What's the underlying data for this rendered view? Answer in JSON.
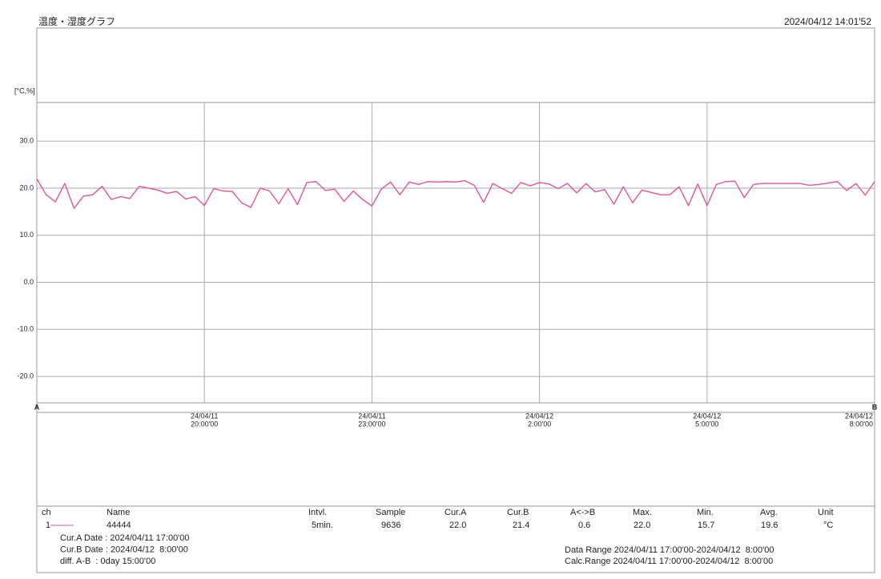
{
  "chart_data": {
    "type": "line",
    "title": "温度・湿度グラフ",
    "timestamp": "2024/04/12 14:01'52",
    "y_label": "[°C,%]",
    "cursor_a_label": "A",
    "cursor_b_label": "B",
    "grid": true,
    "ylim": [
      -25.6,
      38.2
    ],
    "yticks": [
      {
        "value": 30,
        "label": "30.0"
      },
      {
        "value": 20,
        "label": "20.0"
      },
      {
        "value": 10,
        "label": "10.0"
      },
      {
        "value": 0,
        "label": "0.0"
      },
      {
        "value": -10,
        "label": "-10.0"
      },
      {
        "value": -20,
        "label": "-20.0"
      }
    ],
    "xlim": [
      "2024-04-11T17:00",
      "2024-04-12T08:00"
    ],
    "xticks": [
      {
        "value": "2024-04-11T20:00",
        "label": [
          "24/04/11",
          "20:00'00"
        ]
      },
      {
        "value": "2024-04-11T23:00",
        "label": [
          "24/04/11",
          "23:00'00"
        ]
      },
      {
        "value": "2024-04-12T02:00",
        "label": [
          "24/04/12",
          "2:00'00"
        ]
      },
      {
        "value": "2024-04-12T05:00",
        "label": [
          "24/04/12",
          "5:00'00"
        ]
      },
      {
        "value": "2024-04-12T08:00",
        "label": [
          "24/04/12",
          "8:00'00"
        ]
      }
    ],
    "x": [
      "2024-04-11T17:00",
      "2024-04-11T17:10",
      "2024-04-11T17:20",
      "2024-04-11T17:30",
      "2024-04-11T17:40",
      "2024-04-11T17:50",
      "2024-04-11T18:00",
      "2024-04-11T18:10",
      "2024-04-11T18:20",
      "2024-04-11T18:30",
      "2024-04-11T18:40",
      "2024-04-11T18:50",
      "2024-04-11T19:00",
      "2024-04-11T19:10",
      "2024-04-11T19:20",
      "2024-04-11T19:30",
      "2024-04-11T19:40",
      "2024-04-11T19:50",
      "2024-04-11T20:00",
      "2024-04-11T20:10",
      "2024-04-11T20:20",
      "2024-04-11T20:30",
      "2024-04-11T20:40",
      "2024-04-11T20:50",
      "2024-04-11T21:00",
      "2024-04-11T21:10",
      "2024-04-11T21:20",
      "2024-04-11T21:30",
      "2024-04-11T21:40",
      "2024-04-11T21:50",
      "2024-04-11T22:00",
      "2024-04-11T22:10",
      "2024-04-11T22:20",
      "2024-04-11T22:30",
      "2024-04-11T22:40",
      "2024-04-11T22:50",
      "2024-04-11T23:00",
      "2024-04-11T23:10",
      "2024-04-11T23:20",
      "2024-04-11T23:30",
      "2024-04-11T23:40",
      "2024-04-11T23:50",
      "2024-04-12T00:00",
      "2024-04-12T00:10",
      "2024-04-12T00:20",
      "2024-04-12T00:30",
      "2024-04-12T00:40",
      "2024-04-12T00:50",
      "2024-04-12T01:00",
      "2024-04-12T01:10",
      "2024-04-12T01:20",
      "2024-04-12T01:30",
      "2024-04-12T01:40",
      "2024-04-12T01:50",
      "2024-04-12T02:00",
      "2024-04-12T02:10",
      "2024-04-12T02:20",
      "2024-04-12T02:30",
      "2024-04-12T02:40",
      "2024-04-12T02:50",
      "2024-04-12T03:00",
      "2024-04-12T03:10",
      "2024-04-12T03:20",
      "2024-04-12T03:30",
      "2024-04-12T03:40",
      "2024-04-12T03:50",
      "2024-04-12T04:00",
      "2024-04-12T04:10",
      "2024-04-12T04:20",
      "2024-04-12T04:30",
      "2024-04-12T04:40",
      "2024-04-12T04:50",
      "2024-04-12T05:00",
      "2024-04-12T05:10",
      "2024-04-12T05:20",
      "2024-04-12T05:30",
      "2024-04-12T05:40",
      "2024-04-12T05:50",
      "2024-04-12T06:00",
      "2024-04-12T06:10",
      "2024-04-12T06:20",
      "2024-04-12T06:30",
      "2024-04-12T06:40",
      "2024-04-12T06:50",
      "2024-04-12T07:00",
      "2024-04-12T07:10",
      "2024-04-12T07:20",
      "2024-04-12T07:30",
      "2024-04-12T07:40",
      "2024-04-12T07:50",
      "2024-04-12T08:00"
    ],
    "series": [
      {
        "name": "44444",
        "color": "#e0559b",
        "values": [
          22.0,
          18.6,
          17.1,
          21.0,
          15.7,
          18.3,
          18.6,
          20.4,
          17.6,
          18.2,
          17.8,
          20.4,
          20.0,
          19.6,
          18.9,
          19.3,
          17.7,
          18.2,
          16.3,
          19.9,
          19.4,
          19.3,
          16.9,
          15.9,
          20.0,
          19.4,
          16.7,
          19.9,
          16.5,
          21.2,
          21.4,
          19.5,
          19.8,
          17.2,
          19.4,
          17.6,
          16.2,
          19.8,
          21.3,
          18.6,
          21.3,
          20.8,
          21.4,
          21.3,
          21.4,
          21.3,
          21.6,
          20.6,
          17.0,
          21.0,
          19.9,
          18.9,
          21.2,
          20.5,
          21.2,
          20.9,
          19.9,
          21.0,
          19.0,
          21.0,
          19.2,
          19.7,
          16.6,
          20.3,
          16.9,
          19.6,
          19.1,
          18.6,
          18.6,
          20.3,
          16.3,
          20.9,
          16.3,
          20.8,
          21.4,
          21.5,
          18.0,
          20.8,
          21.0,
          21.0,
          21.0,
          21.0,
          21.0,
          20.6,
          20.8,
          21.1,
          21.4,
          19.5,
          21.0,
          18.5,
          21.4
        ]
      }
    ]
  },
  "summary": {
    "columns": [
      "ch",
      "Name",
      "Intvl.",
      "Sample",
      "Cur.A",
      "Cur.B",
      "A<->B",
      "Max.",
      "Min.",
      "Avg.",
      "Unit"
    ],
    "ch": "1",
    "interval": "5min.",
    "sample": "9636",
    "cur_a": "22.0",
    "cur_b": "21.4",
    "diff": "0.6",
    "max": "22.0",
    "min": "15.7",
    "avg": "19.6",
    "unit": "°C",
    "info_left": [
      "Cur.A Date : 2024/04/11 17:00'00",
      "Cur.B Date : 2024/04/12  8:00'00",
      "diff. A-B  : 0day 15:00'00"
    ],
    "info_right": [
      "Data Range 2024/04/11 17:00'00-2024/04/12  8:00'00",
      "Calc.Range 2024/04/11 17:00'00-2024/04/12  8:00'00"
    ]
  }
}
